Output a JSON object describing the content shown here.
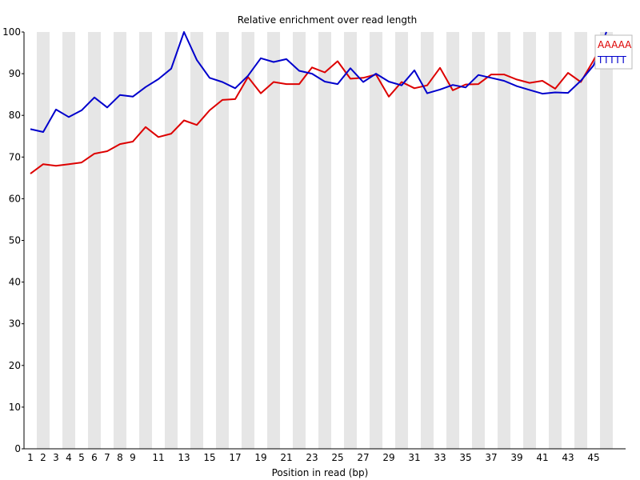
{
  "chart_data": {
    "type": "line",
    "title": "Relative enrichment over read length",
    "xlabel": "Position in read (bp)",
    "ylabel": "",
    "ylim": [
      0,
      100
    ],
    "yticks": [
      0,
      10,
      20,
      30,
      40,
      50,
      60,
      70,
      80,
      90,
      100
    ],
    "xtick_labels": [
      "1",
      "2",
      "3",
      "4",
      "5",
      "6",
      "7",
      "8",
      "9",
      "11",
      "13",
      "15",
      "17",
      "19",
      "21",
      "23",
      "25",
      "27",
      "29",
      "31",
      "33",
      "35",
      "37",
      "39",
      "41",
      "43",
      "45"
    ],
    "x": [
      1,
      2,
      3,
      4,
      5,
      6,
      7,
      8,
      9,
      10,
      11,
      12,
      13,
      14,
      15,
      16,
      17,
      18,
      19,
      20,
      21,
      22,
      23,
      24,
      25,
      26,
      27,
      28,
      29,
      30,
      31,
      32,
      33,
      34,
      35,
      36,
      37,
      38,
      39,
      40,
      41,
      42,
      43,
      44,
      45,
      46
    ],
    "grid": "alternating vertical bands",
    "legend_position": "top-right",
    "series": [
      {
        "name": "AAAAA",
        "color": "#dd0000",
        "values": [
          66.0,
          68.3,
          67.9,
          68.3,
          68.7,
          70.8,
          71.4,
          73.1,
          73.7,
          77.2,
          74.8,
          75.6,
          78.8,
          77.7,
          81.2,
          83.7,
          83.9,
          89.2,
          85.3,
          88.0,
          87.5,
          87.5,
          91.5,
          90.3,
          93.0,
          88.8,
          89.0,
          89.8,
          84.5,
          88.0,
          86.5,
          87.2,
          91.4,
          86.0,
          87.4,
          87.5,
          89.8,
          89.8,
          88.6,
          87.8,
          88.3,
          86.4,
          90.2,
          88.0,
          93.2,
          99.3
        ]
      },
      {
        "name": "TTTTT",
        "color": "#0000cc",
        "values": [
          76.7,
          76.0,
          81.4,
          79.6,
          81.2,
          84.3,
          81.9,
          84.9,
          84.5,
          86.8,
          88.7,
          91.2,
          100.0,
          93.3,
          89.0,
          88.0,
          86.5,
          89.5,
          93.7,
          92.8,
          93.5,
          90.7,
          90.0,
          88.1,
          87.5,
          91.3,
          88.0,
          90.0,
          88.1,
          87.2,
          90.8,
          85.3,
          86.2,
          87.3,
          86.7,
          89.7,
          89.0,
          88.3,
          87.0,
          86.1,
          85.2,
          85.5,
          85.4,
          88.3,
          92.0,
          100.0
        ]
      }
    ]
  }
}
